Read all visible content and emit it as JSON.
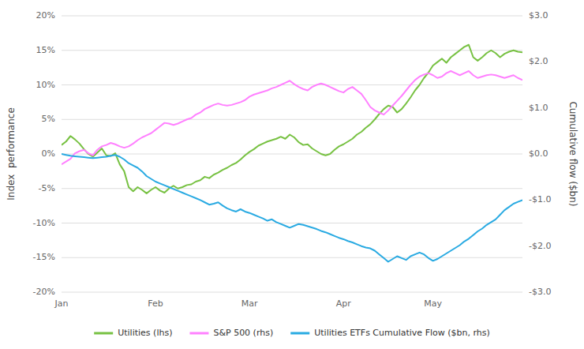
{
  "chart_data": {
    "type": "line",
    "y_label": "Index  performance",
    "y2_label": "Cumulative flow ($bn)",
    "categories": [
      "Jan",
      null,
      null,
      null,
      null,
      null,
      null,
      null,
      null,
      null,
      null,
      null,
      null,
      null,
      null,
      null,
      null,
      null,
      null,
      null,
      null,
      "Feb",
      null,
      null,
      null,
      null,
      null,
      null,
      null,
      null,
      null,
      null,
      null,
      null,
      null,
      null,
      null,
      null,
      null,
      null,
      null,
      null,
      "Mar",
      null,
      null,
      null,
      null,
      null,
      null,
      null,
      null,
      null,
      null,
      null,
      null,
      null,
      null,
      null,
      null,
      null,
      null,
      null,
      null,
      "Apr",
      null,
      null,
      null,
      null,
      null,
      null,
      null,
      null,
      null,
      null,
      null,
      null,
      null,
      null,
      null,
      null,
      null,
      null,
      null,
      "May",
      null,
      null,
      null,
      null,
      null,
      null,
      null,
      null,
      null,
      null,
      null,
      null,
      null,
      null,
      null,
      null,
      null,
      null,
      null,
      null
    ],
    "ylim": [
      -0.2,
      0.2
    ],
    "yticks": [
      {
        "value": -0.2,
        "label": "-20%"
      },
      {
        "value": -0.15,
        "label": "-15%"
      },
      {
        "value": -0.1,
        "label": "-10%"
      },
      {
        "value": -0.05,
        "label": "-5%"
      },
      {
        "value": 0.0,
        "label": "0%"
      },
      {
        "value": 0.05,
        "label": "5%"
      },
      {
        "value": 0.1,
        "label": "10%"
      },
      {
        "value": 0.15,
        "label": "15%"
      },
      {
        "value": 0.2,
        "label": "20%"
      }
    ],
    "y2lim": [
      -3.0,
      3.0
    ],
    "y2ticks": [
      {
        "value": -3.0,
        "label": "-$3.0"
      },
      {
        "value": -2.0,
        "label": "-$2.0"
      },
      {
        "value": -1.0,
        "label": "-$1.0"
      },
      {
        "value": 0.0,
        "label": "$0.0"
      },
      {
        "value": 1.0,
        "label": "$1.0"
      },
      {
        "value": 2.0,
        "label": "$2.0"
      },
      {
        "value": 3.0,
        "label": "$3.0"
      }
    ],
    "grid": true,
    "legend": "bottom",
    "series": [
      {
        "name": "Utilities (lhs)",
        "color": "#77c142",
        "axis": "y",
        "values": [
          0.013,
          0.018,
          0.026,
          0.021,
          0.015,
          0.007,
          0.0,
          -0.004,
          0.002,
          0.008,
          -0.002,
          -0.003,
          0.001,
          -0.015,
          -0.025,
          -0.048,
          -0.054,
          -0.048,
          -0.052,
          -0.057,
          -0.052,
          -0.048,
          -0.053,
          -0.056,
          -0.05,
          -0.046,
          -0.05,
          -0.048,
          -0.045,
          -0.044,
          -0.04,
          -0.038,
          -0.033,
          -0.035,
          -0.03,
          -0.027,
          -0.023,
          -0.02,
          -0.016,
          -0.013,
          -0.008,
          -0.002,
          0.003,
          0.007,
          0.012,
          0.015,
          0.018,
          0.02,
          0.022,
          0.025,
          0.022,
          0.028,
          0.024,
          0.017,
          0.013,
          0.014,
          0.008,
          0.004,
          0.0,
          -0.002,
          0.0,
          0.006,
          0.011,
          0.014,
          0.018,
          0.022,
          0.028,
          0.032,
          0.038,
          0.043,
          0.05,
          0.058,
          0.065,
          0.07,
          0.068,
          0.06,
          0.065,
          0.073,
          0.082,
          0.092,
          0.1,
          0.11,
          0.118,
          0.128,
          0.133,
          0.138,
          0.132,
          0.14,
          0.145,
          0.15,
          0.155,
          0.158,
          0.14,
          0.135,
          0.14,
          0.146,
          0.15,
          0.146,
          0.14,
          0.145,
          0.148,
          0.15,
          0.148,
          0.147
        ]
      },
      {
        "name": "S&P 500 (rhs)",
        "color": "#ff80ff",
        "axis": "y",
        "values": [
          -0.015,
          -0.011,
          -0.007,
          0.001,
          0.004,
          0.006,
          0.001,
          -0.002,
          0.006,
          0.011,
          0.013,
          0.016,
          0.014,
          0.011,
          0.009,
          0.011,
          0.015,
          0.02,
          0.024,
          0.027,
          0.03,
          0.035,
          0.04,
          0.045,
          0.044,
          0.042,
          0.044,
          0.047,
          0.05,
          0.052,
          0.057,
          0.06,
          0.065,
          0.068,
          0.071,
          0.073,
          0.071,
          0.07,
          0.071,
          0.073,
          0.075,
          0.078,
          0.083,
          0.086,
          0.088,
          0.09,
          0.092,
          0.095,
          0.097,
          0.1,
          0.103,
          0.106,
          0.101,
          0.097,
          0.094,
          0.092,
          0.097,
          0.1,
          0.102,
          0.1,
          0.097,
          0.094,
          0.091,
          0.089,
          0.094,
          0.097,
          0.092,
          0.087,
          0.078,
          0.068,
          0.063,
          0.06,
          0.057,
          0.063,
          0.07,
          0.077,
          0.084,
          0.092,
          0.1,
          0.107,
          0.112,
          0.115,
          0.117,
          0.114,
          0.11,
          0.112,
          0.117,
          0.12,
          0.117,
          0.114,
          0.117,
          0.12,
          0.114,
          0.11,
          0.112,
          0.114,
          0.115,
          0.114,
          0.112,
          0.11,
          0.112,
          0.114,
          0.11,
          0.107
        ]
      },
      {
        "name": "Utilities ETFs Cumulative Flow ($bn, rhs)",
        "color": "#29aae2",
        "axis": "y2",
        "values": [
          0.0,
          -0.02,
          -0.04,
          -0.05,
          -0.06,
          -0.07,
          -0.08,
          -0.09,
          -0.08,
          -0.07,
          -0.06,
          -0.04,
          -0.02,
          -0.06,
          -0.12,
          -0.2,
          -0.25,
          -0.3,
          -0.38,
          -0.48,
          -0.54,
          -0.6,
          -0.64,
          -0.68,
          -0.72,
          -0.76,
          -0.8,
          -0.84,
          -0.88,
          -0.92,
          -0.96,
          -1.0,
          -1.05,
          -1.1,
          -1.08,
          -1.05,
          -1.12,
          -1.18,
          -1.22,
          -1.25,
          -1.2,
          -1.25,
          -1.28,
          -1.32,
          -1.36,
          -1.4,
          -1.45,
          -1.42,
          -1.48,
          -1.52,
          -1.56,
          -1.6,
          -1.56,
          -1.52,
          -1.54,
          -1.57,
          -1.6,
          -1.63,
          -1.67,
          -1.7,
          -1.74,
          -1.78,
          -1.82,
          -1.85,
          -1.89,
          -1.92,
          -1.96,
          -2.0,
          -2.03,
          -2.05,
          -2.1,
          -2.18,
          -2.26,
          -2.34,
          -2.28,
          -2.22,
          -2.26,
          -2.3,
          -2.22,
          -2.18,
          -2.14,
          -2.18,
          -2.26,
          -2.32,
          -2.28,
          -2.22,
          -2.16,
          -2.1,
          -2.04,
          -1.98,
          -1.9,
          -1.84,
          -1.76,
          -1.68,
          -1.62,
          -1.54,
          -1.48,
          -1.42,
          -1.32,
          -1.22,
          -1.15,
          -1.08,
          -1.04,
          -1.0
        ]
      }
    ]
  }
}
